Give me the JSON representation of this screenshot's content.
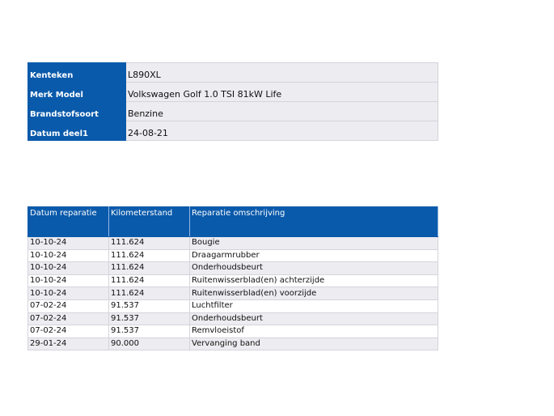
{
  "vehicle_info": [
    {
      "label": "Kenteken",
      "value": "L890XL"
    },
    {
      "label": "Merk Model",
      "value": "Volkswagen Golf 1.0 TSI 81kW Life"
    },
    {
      "label": "Brandstofsoort",
      "value": "Benzine"
    },
    {
      "label": "Datum deel1",
      "value": "24-08-21"
    }
  ],
  "repairs": {
    "headers": [
      "Datum reparatie",
      "Kilometerstand",
      "Reparatie omschrijving"
    ],
    "rows": [
      [
        "10-10-24",
        "111.624",
        "Bougie"
      ],
      [
        "10-10-24",
        "111.624",
        "Draagarmrubber"
      ],
      [
        "10-10-24",
        "111.624",
        "Onderhoudsbeurt"
      ],
      [
        "10-10-24",
        "111.624",
        "Ruitenwisserblad(en) achterzijde"
      ],
      [
        "10-10-24",
        "111.624",
        "Ruitenwisserblad(en) voorzijde"
      ],
      [
        "07-02-24",
        "91.537",
        "Luchtfilter"
      ],
      [
        "07-02-24",
        "91.537",
        "Onderhoudsbeurt"
      ],
      [
        "07-02-24",
        "91.537",
        "Remvloeistof"
      ],
      [
        "29-01-24",
        "90.000",
        "Vervanging band"
      ]
    ]
  },
  "colors": {
    "header_blue": "#0a5aab",
    "row_gray": "#ececf1"
  }
}
